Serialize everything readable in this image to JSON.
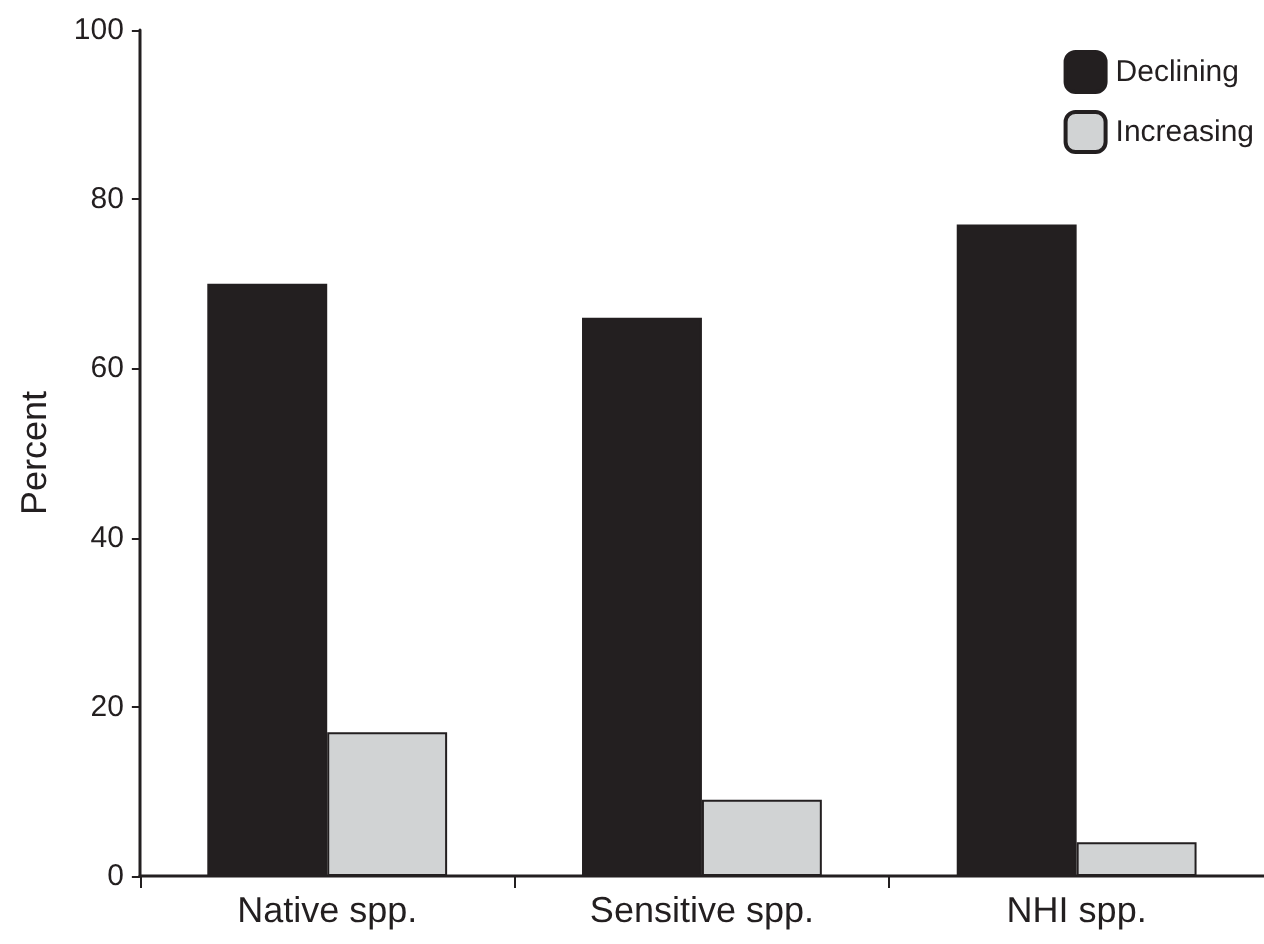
{
  "chart_data": {
    "type": "bar",
    "ylabel": "Percent",
    "categories": [
      "Native spp.",
      "Sensitive spp.",
      "NHI spp."
    ],
    "series": [
      {
        "name": "Declining",
        "color": "#231f20",
        "values": [
          70,
          66,
          77
        ]
      },
      {
        "name": "Increasing",
        "color": "#d1d3d4",
        "values": [
          17,
          9,
          4
        ]
      }
    ],
    "ylim": [
      0,
      100
    ],
    "yticks": [
      0,
      20,
      40,
      60,
      80,
      100
    ],
    "grid": false,
    "legend": "top right"
  }
}
